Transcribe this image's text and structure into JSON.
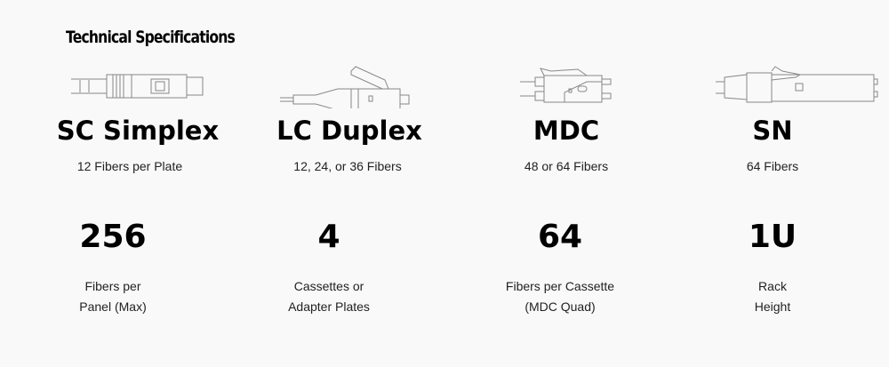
{
  "title": "Technical Specifications",
  "connectors": [
    {
      "icon": "sc-simplex-connector-icon",
      "name": "SC Simplex",
      "sub": "12 Fibers per Plate"
    },
    {
      "icon": "lc-duplex-connector-icon",
      "name": "LC Duplex",
      "sub": "12, 24, or 36 Fibers"
    },
    {
      "icon": "mdc-connector-icon",
      "name": "MDC",
      "sub": "48 or 64 Fibers"
    },
    {
      "icon": "sn-connector-icon",
      "name": "SN",
      "sub": "64 Fibers"
    }
  ],
  "stats": [
    {
      "value": "256",
      "line1": "Fibers per",
      "line2": "Panel (Max)"
    },
    {
      "value": "4",
      "line1": "Cassettes or",
      "line2": "Adapter Plates"
    },
    {
      "value": "64",
      "line1": "Fibers per Cassette",
      "line2": "(MDC Quad)"
    },
    {
      "value": "1U",
      "line1": "Rack",
      "line2": "Height"
    }
  ]
}
